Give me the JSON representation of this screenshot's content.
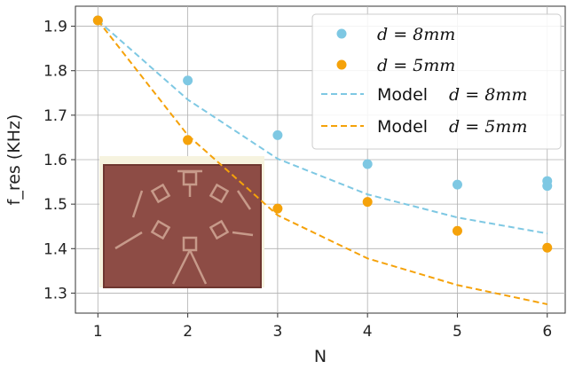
{
  "chart_data": {
    "type": "scatter",
    "xlabel": "N",
    "ylabel": "f_res (KHz)",
    "xlim": [
      0.75,
      6.2
    ],
    "ylim": [
      1.255,
      1.945
    ],
    "xticks": [
      1,
      2,
      3,
      4,
      5,
      6
    ],
    "yticks": [
      1.3,
      1.4,
      1.5,
      1.6,
      1.7,
      1.8,
      1.9
    ],
    "xtick_labels": [
      "1",
      "2",
      "3",
      "4",
      "5",
      "6"
    ],
    "ytick_labels": [
      "1.3",
      "1.4",
      "1.5",
      "1.6",
      "1.7",
      "1.8",
      "1.9"
    ],
    "grid": true,
    "legend_position": "top-right",
    "series": [
      {
        "name": "d = 8mm",
        "kind": "points",
        "color": "#7ec8e3",
        "x": [
          1,
          2,
          3,
          4,
          5,
          6,
          6
        ],
        "y": [
          1.913,
          1.778,
          1.655,
          1.59,
          1.544,
          1.552,
          1.541
        ]
      },
      {
        "name": "d = 5mm",
        "kind": "points",
        "color": "#f5a20a",
        "x": [
          1,
          2,
          3,
          4,
          5,
          6
        ],
        "y": [
          1.913,
          1.644,
          1.49,
          1.505,
          1.44,
          1.402
        ]
      },
      {
        "name": "Model   d = 8mm",
        "kind": "dashed-line",
        "color": "#7ec8e3",
        "x": [
          1,
          2,
          3,
          4,
          5,
          6
        ],
        "y": [
          1.913,
          1.735,
          1.602,
          1.522,
          1.47,
          1.434
        ]
      },
      {
        "name": "Model   d = 5mm",
        "kind": "dashed-line",
        "color": "#f5a20a",
        "x": [
          1,
          2,
          3,
          4,
          5,
          6
        ],
        "y": [
          1.913,
          1.655,
          1.475,
          1.378,
          1.318,
          1.275
        ]
      }
    ]
  },
  "legend": {
    "entry1_var": "d",
    "entry1_rest": " = 8mm",
    "entry2_var": "d",
    "entry2_rest": " = 5mm",
    "entry3_model": "Model",
    "entry3_var": "d",
    "entry3_rest": " = 8mm",
    "entry4_model": "Model",
    "entry4_var": "d",
    "entry4_rest": " = 5mm"
  }
}
